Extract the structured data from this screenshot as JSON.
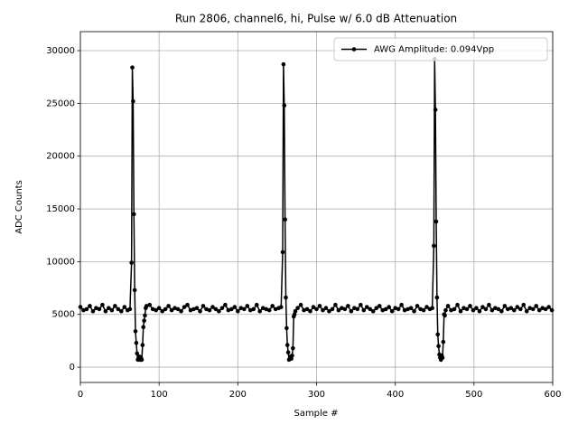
{
  "chart_data": {
    "type": "line",
    "title": "Run 2806, channel6, hi, Pulse w/ 6.0 dB Attenuation",
    "x_label": "Sample #",
    "y_label": "ADC Counts",
    "x": [
      0,
      4,
      8,
      12,
      16,
      20,
      24,
      28,
      32,
      36,
      40,
      44,
      48,
      52,
      56,
      60,
      63,
      65,
      66,
      67,
      68,
      69,
      70,
      71,
      72,
      73,
      74,
      75,
      76,
      77,
      78,
      79,
      80,
      81,
      82,
      83,
      84,
      88,
      92,
      96,
      100,
      104,
      108,
      112,
      116,
      120,
      124,
      128,
      132,
      136,
      140,
      144,
      148,
      152,
      156,
      160,
      164,
      168,
      172,
      176,
      180,
      184,
      188,
      192,
      196,
      200,
      204,
      208,
      212,
      216,
      220,
      224,
      228,
      232,
      236,
      240,
      244,
      248,
      252,
      255,
      257,
      258,
      259,
      260,
      261,
      262,
      263,
      264,
      265,
      266,
      267,
      268,
      269,
      270,
      271,
      272,
      273,
      276,
      280,
      284,
      288,
      292,
      296,
      300,
      304,
      308,
      312,
      316,
      320,
      324,
      328,
      332,
      336,
      340,
      344,
      348,
      352,
      356,
      360,
      364,
      368,
      372,
      376,
      380,
      384,
      388,
      392,
      396,
      400,
      404,
      408,
      412,
      416,
      420,
      424,
      428,
      432,
      436,
      440,
      444,
      447,
      449,
      450,
      451,
      452,
      453,
      454,
      455,
      456,
      457,
      458,
      459,
      460,
      461,
      462,
      463,
      464,
      467,
      471,
      475,
      479,
      483,
      487,
      491,
      495,
      499,
      503,
      507,
      511,
      515,
      519,
      523,
      527,
      531,
      535,
      539,
      543,
      547,
      551,
      555,
      559,
      563,
      567,
      571,
      575,
      579,
      583,
      587,
      591,
      595,
      599
    ],
    "series": [
      {
        "name": "AWG Amplitude: 0.094Vpp",
        "color": "#000000",
        "values": [
          5700,
          5400,
          5500,
          5800,
          5300,
          5600,
          5500,
          5900,
          5300,
          5600,
          5400,
          5800,
          5500,
          5300,
          5700,
          5400,
          5500,
          9900,
          28400,
          25200,
          14500,
          7300,
          3400,
          2300,
          1300,
          700,
          900,
          1000,
          700,
          900,
          700,
          2100,
          3800,
          4400,
          4900,
          5600,
          5800,
          5900,
          5500,
          5400,
          5600,
          5300,
          5500,
          5800,
          5400,
          5600,
          5500,
          5300,
          5700,
          5900,
          5400,
          5500,
          5600,
          5300,
          5800,
          5500,
          5400,
          5700,
          5500,
          5300,
          5600,
          5900,
          5400,
          5500,
          5700,
          5300,
          5600,
          5500,
          5800,
          5400,
          5500,
          5900,
          5300,
          5600,
          5500,
          5400,
          5800,
          5500,
          5600,
          5700,
          10900,
          28700,
          24800,
          14000,
          6600,
          3700,
          2100,
          1400,
          700,
          800,
          1000,
          800,
          1100,
          1800,
          4800,
          5000,
          5300,
          5600,
          5900,
          5400,
          5500,
          5300,
          5700,
          5500,
          5800,
          5400,
          5600,
          5300,
          5500,
          5900,
          5400,
          5600,
          5500,
          5800,
          5300,
          5600,
          5500,
          5900,
          5400,
          5700,
          5500,
          5300,
          5600,
          5800,
          5400,
          5500,
          5700,
          5300,
          5600,
          5500,
          5900,
          5400,
          5500,
          5600,
          5300,
          5800,
          5500,
          5400,
          5700,
          5500,
          5600,
          11500,
          29200,
          24400,
          13800,
          6600,
          3100,
          2000,
          1200,
          900,
          700,
          1100,
          900,
          2400,
          5000,
          4900,
          5400,
          5800,
          5400,
          5500,
          5900,
          5300,
          5600,
          5500,
          5800,
          5400,
          5600,
          5300,
          5700,
          5500,
          5900,
          5400,
          5600,
          5500,
          5300,
          5800,
          5500,
          5600,
          5400,
          5700,
          5500,
          5900,
          5300,
          5600,
          5500,
          5800,
          5400,
          5600,
          5500,
          5700,
          5400
        ]
      }
    ],
    "xlim": [
      0,
      600
    ],
    "xticks": [
      0,
      100,
      200,
      300,
      400,
      500,
      600
    ],
    "ylim": [
      -1450,
      31800
    ],
    "yticks": [
      0,
      5000,
      10000,
      15000,
      20000,
      25000,
      30000
    ],
    "grid": true,
    "legend": "upper right"
  }
}
